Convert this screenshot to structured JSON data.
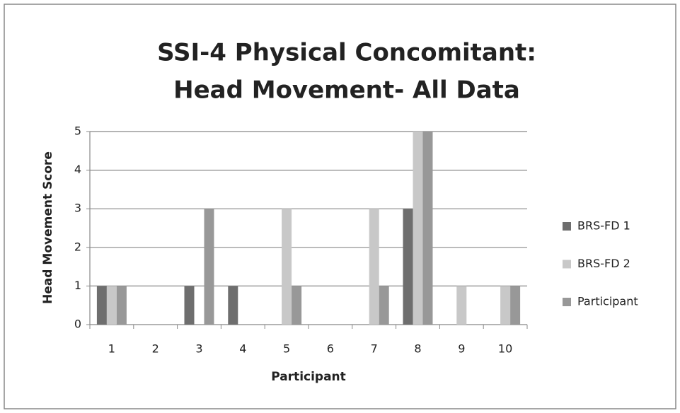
{
  "chart_data": {
    "type": "bar",
    "title": [
      "SSI-4 Physical Concomitant:",
      "Head Movement- All Data"
    ],
    "x_label": "Participant",
    "y_label": "Head Movement Score",
    "categories": [
      "1",
      "2",
      "3",
      "4",
      "5",
      "6",
      "7",
      "8",
      "9",
      "10"
    ],
    "series": [
      {
        "name": "BRS-FD 1",
        "color": "#6e6e6e",
        "values": [
          1,
          0,
          1,
          1,
          0,
          0,
          0,
          3,
          0,
          0
        ]
      },
      {
        "name": "BRS-FD 2",
        "color": "#c8c8c8",
        "values": [
          1,
          0,
          0,
          0,
          3,
          0,
          3,
          5,
          1,
          1
        ]
      },
      {
        "name": "Participant",
        "color": "#989898",
        "values": [
          1,
          0,
          3,
          0,
          1,
          0,
          1,
          5,
          0,
          1
        ]
      }
    ],
    "ylim": [
      0,
      5
    ],
    "yticks": [
      0,
      1,
      2,
      3,
      4,
      5
    ],
    "grid": true,
    "legend": "right"
  }
}
